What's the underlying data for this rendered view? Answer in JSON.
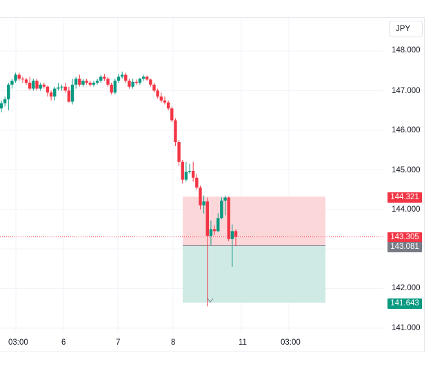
{
  "currency_button": {
    "label": "JPY"
  },
  "colors": {
    "up": "#089981",
    "down": "#f23645",
    "grid": "#f0f3fa",
    "stop_zone": "#fcd7da",
    "target_zone": "#cfeae4",
    "entry_line": "#787b86",
    "last_price_line": "#f23645",
    "tag_stop": "#f23645",
    "tag_last": "#f23645",
    "tag_entry": "#787b86",
    "tag_target": "#089981"
  },
  "price_axis": {
    "labels": [
      "148.000",
      "147.000",
      "146.000",
      "145.000",
      "144.000",
      "142.000",
      "141.000"
    ]
  },
  "price_tags": {
    "stop": "144.321",
    "last": "143.305",
    "entry": "143.081",
    "target": "141.643"
  },
  "time_axis": {
    "labels": [
      "03:00",
      "6",
      "7",
      "8",
      "11",
      "03:00"
    ]
  },
  "chart_data": {
    "type": "candlestick",
    "title": "",
    "xlabel": "",
    "ylabel": "JPY",
    "ylim": [
      140.65,
      148.65
    ],
    "grid": true,
    "x_ticks": [
      "03:00",
      "6",
      "7",
      "8",
      "11",
      "03:00"
    ],
    "y_ticks": [
      141.0,
      142.0,
      143.0,
      144.0,
      145.0,
      146.0,
      147.0,
      148.0
    ],
    "position_tool": {
      "type": "short",
      "entry": 143.081,
      "stop_loss": 144.321,
      "take_profit": 141.643
    },
    "last_price": 143.305,
    "candles": [
      {
        "o": 146.55,
        "h": 146.75,
        "l": 146.45,
        "c": 146.68
      },
      {
        "o": 146.68,
        "h": 146.85,
        "l": 146.6,
        "c": 146.78
      },
      {
        "o": 146.78,
        "h": 147.2,
        "l": 146.5,
        "c": 147.15
      },
      {
        "o": 147.15,
        "h": 147.3,
        "l": 147.05,
        "c": 147.25
      },
      {
        "o": 147.25,
        "h": 147.45,
        "l": 147.2,
        "c": 147.4
      },
      {
        "o": 147.4,
        "h": 147.45,
        "l": 147.25,
        "c": 147.3
      },
      {
        "o": 147.3,
        "h": 147.35,
        "l": 147.2,
        "c": 147.28
      },
      {
        "o": 147.28,
        "h": 147.32,
        "l": 147.15,
        "c": 147.2
      },
      {
        "o": 147.2,
        "h": 147.35,
        "l": 147.0,
        "c": 147.05
      },
      {
        "o": 147.05,
        "h": 147.3,
        "l": 147.0,
        "c": 147.25
      },
      {
        "o": 147.25,
        "h": 147.3,
        "l": 147.0,
        "c": 147.05
      },
      {
        "o": 147.05,
        "h": 147.2,
        "l": 147.0,
        "c": 147.15
      },
      {
        "o": 147.15,
        "h": 147.2,
        "l": 147.05,
        "c": 147.1
      },
      {
        "o": 147.1,
        "h": 147.12,
        "l": 146.85,
        "c": 146.95
      },
      {
        "o": 146.95,
        "h": 147.0,
        "l": 146.75,
        "c": 146.85
      },
      {
        "o": 146.85,
        "h": 147.1,
        "l": 146.75,
        "c": 147.05
      },
      {
        "o": 147.05,
        "h": 147.2,
        "l": 147.0,
        "c": 147.08
      },
      {
        "o": 147.08,
        "h": 147.15,
        "l": 147.0,
        "c": 147.1
      },
      {
        "o": 147.1,
        "h": 147.2,
        "l": 146.95,
        "c": 147.0
      },
      {
        "o": 147.0,
        "h": 147.1,
        "l": 146.7,
        "c": 146.72
      },
      {
        "o": 146.72,
        "h": 147.3,
        "l": 146.65,
        "c": 147.15
      },
      {
        "o": 147.15,
        "h": 147.35,
        "l": 147.05,
        "c": 147.3
      },
      {
        "o": 147.3,
        "h": 147.4,
        "l": 147.1,
        "c": 147.15
      },
      {
        "o": 147.15,
        "h": 147.3,
        "l": 147.1,
        "c": 147.25
      },
      {
        "o": 147.25,
        "h": 147.3,
        "l": 147.15,
        "c": 147.2
      },
      {
        "o": 147.2,
        "h": 147.25,
        "l": 147.1,
        "c": 147.15
      },
      {
        "o": 147.15,
        "h": 147.25,
        "l": 147.1,
        "c": 147.2
      },
      {
        "o": 147.2,
        "h": 147.3,
        "l": 147.15,
        "c": 147.25
      },
      {
        "o": 147.25,
        "h": 147.4,
        "l": 147.2,
        "c": 147.35
      },
      {
        "o": 147.35,
        "h": 147.42,
        "l": 147.25,
        "c": 147.3
      },
      {
        "o": 147.3,
        "h": 147.35,
        "l": 147.1,
        "c": 147.15
      },
      {
        "o": 147.15,
        "h": 147.2,
        "l": 146.9,
        "c": 146.95
      },
      {
        "o": 146.95,
        "h": 147.3,
        "l": 146.9,
        "c": 147.25
      },
      {
        "o": 147.25,
        "h": 147.42,
        "l": 147.2,
        "c": 147.35
      },
      {
        "o": 147.35,
        "h": 147.48,
        "l": 147.3,
        "c": 147.4
      },
      {
        "o": 147.4,
        "h": 147.45,
        "l": 147.2,
        "c": 147.25
      },
      {
        "o": 147.25,
        "h": 147.3,
        "l": 147.05,
        "c": 147.1
      },
      {
        "o": 147.1,
        "h": 147.3,
        "l": 147.05,
        "c": 147.22
      },
      {
        "o": 147.22,
        "h": 147.28,
        "l": 147.15,
        "c": 147.2
      },
      {
        "o": 147.2,
        "h": 147.32,
        "l": 147.15,
        "c": 147.3
      },
      {
        "o": 147.3,
        "h": 147.4,
        "l": 147.25,
        "c": 147.35
      },
      {
        "o": 147.35,
        "h": 147.38,
        "l": 147.25,
        "c": 147.28
      },
      {
        "o": 147.28,
        "h": 147.3,
        "l": 147.1,
        "c": 147.15
      },
      {
        "o": 147.15,
        "h": 147.2,
        "l": 146.95,
        "c": 147.0
      },
      {
        "o": 147.0,
        "h": 147.05,
        "l": 146.8,
        "c": 146.85
      },
      {
        "o": 146.85,
        "h": 146.95,
        "l": 146.7,
        "c": 146.75
      },
      {
        "o": 146.75,
        "h": 146.85,
        "l": 146.65,
        "c": 146.7
      },
      {
        "o": 146.7,
        "h": 146.75,
        "l": 146.5,
        "c": 146.55
      },
      {
        "o": 146.55,
        "h": 146.6,
        "l": 146.2,
        "c": 146.25
      },
      {
        "o": 146.25,
        "h": 146.3,
        "l": 145.6,
        "c": 145.7
      },
      {
        "o": 145.7,
        "h": 145.75,
        "l": 145.1,
        "c": 145.2
      },
      {
        "o": 145.2,
        "h": 145.25,
        "l": 144.65,
        "c": 144.75
      },
      {
        "o": 144.75,
        "h": 145.2,
        "l": 144.7,
        "c": 144.95
      },
      {
        "o": 144.95,
        "h": 145.15,
        "l": 144.9,
        "c": 144.97
      },
      {
        "o": 144.97,
        "h": 145.2,
        "l": 144.7,
        "c": 144.8
      },
      {
        "o": 144.8,
        "h": 144.9,
        "l": 144.5,
        "c": 144.55
      },
      {
        "o": 144.55,
        "h": 144.6,
        "l": 144.0,
        "c": 144.1
      },
      {
        "o": 144.1,
        "h": 144.35,
        "l": 143.9,
        "c": 144.2
      },
      {
        "o": 144.2,
        "h": 144.3,
        "l": 141.55,
        "c": 143.33
      },
      {
        "o": 143.33,
        "h": 143.72,
        "l": 143.1,
        "c": 143.5
      },
      {
        "o": 143.5,
        "h": 143.6,
        "l": 143.35,
        "c": 143.45
      },
      {
        "o": 143.45,
        "h": 143.9,
        "l": 143.42,
        "c": 143.78
      },
      {
        "o": 143.78,
        "h": 144.3,
        "l": 143.75,
        "c": 144.22
      },
      {
        "o": 144.22,
        "h": 144.35,
        "l": 143.85,
        "c": 144.3
      },
      {
        "o": 144.3,
        "h": 144.32,
        "l": 143.2,
        "c": 143.25
      },
      {
        "o": 143.25,
        "h": 143.62,
        "l": 142.55,
        "c": 143.45
      },
      {
        "o": 143.45,
        "h": 143.5,
        "l": 143.08,
        "c": 143.305
      }
    ]
  }
}
